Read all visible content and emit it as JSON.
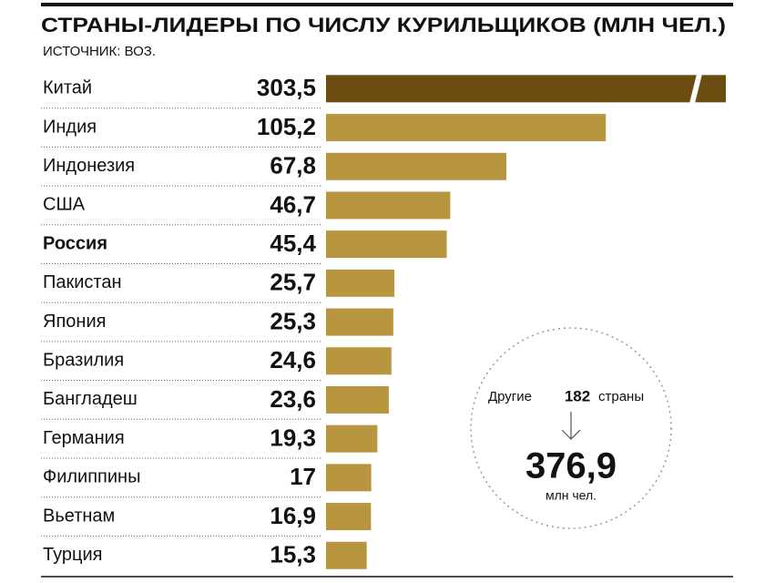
{
  "chart_data": {
    "type": "bar",
    "title": "СТРАНЫ-ЛИДЕРЫ ПО ЧИСЛУ КУРИЛЬЩИКОВ (МЛН ЧЕЛ.)",
    "subtitle": "ИСТОЧНИК: ВОЗ.",
    "categories": [
      "Китай",
      "Индия",
      "Индонезия",
      "США",
      "Россия",
      "Пакистан",
      "Япония",
      "Бразилия",
      "Бангладеш",
      "Германия",
      "Филиппины",
      "Вьетнам",
      "Турция"
    ],
    "values": [
      303.5,
      105.2,
      67.8,
      46.7,
      45.4,
      25.7,
      25.3,
      24.6,
      23.6,
      19.3,
      17,
      16.9,
      15.3
    ],
    "value_labels": [
      "303,5",
      "105,2",
      "67,8",
      "46,7",
      "45,4",
      "25,7",
      "25,3",
      "24,6",
      "23,6",
      "19,3",
      "17",
      "16,9",
      "15,3"
    ],
    "colors": [
      "#6b4d12",
      "#b8963f",
      "#b8963f",
      "#b8963f",
      "#b8963f",
      "#b8963f",
      "#b8963f",
      "#b8963f",
      "#b8963f",
      "#b8963f",
      "#b8963f",
      "#b8963f",
      "#b8963f"
    ],
    "emphasis": [
      4
    ],
    "others": {
      "label": "Другие",
      "count": 182,
      "count_unit": "страны",
      "value": 376.9,
      "value_label": "376,9",
      "unit": "млн чел."
    }
  }
}
